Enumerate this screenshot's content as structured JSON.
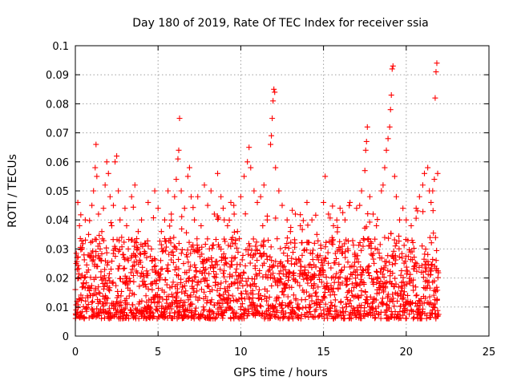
{
  "chart_data": {
    "type": "scatter",
    "title": "Day 180 of 2019, Rate Of TEC Index for receiver ssia",
    "xlabel": "GPS time / hours",
    "ylabel": "ROTI / TECUs",
    "xlim": [
      0,
      25
    ],
    "ylim": [
      0,
      0.1
    ],
    "xticks": [
      "0",
      "5",
      "10",
      "15",
      "20",
      "25"
    ],
    "yticks": [
      "0",
      "0.01",
      "0.02",
      "0.03",
      "0.04",
      "0.05",
      "0.06",
      "0.07",
      "0.08",
      "0.09",
      "0.1"
    ],
    "x_tick_values": [
      0,
      5,
      10,
      15,
      20,
      25
    ],
    "y_tick_values": [
      0,
      0.01,
      0.02,
      0.03,
      0.04,
      0.05,
      0.06,
      0.07,
      0.08,
      0.09,
      0.1
    ],
    "grid": true,
    "marker": "+",
    "color": "#ff0000",
    "series": [
      {
        "points": [
          [
            0.0,
            0.016
          ],
          [
            0.05,
            0.025
          ],
          [
            0.1,
            0.012
          ],
          [
            0.15,
            0.046
          ],
          [
            0.2,
            0.02
          ],
          [
            0.25,
            0.038
          ],
          [
            0.3,
            0.008
          ],
          [
            0.4,
            0.03
          ],
          [
            0.5,
            0.018
          ],
          [
            0.6,
            0.04
          ],
          [
            0.7,
            0.022
          ],
          [
            0.8,
            0.035
          ],
          [
            0.9,
            0.014
          ],
          [
            1.0,
            0.045
          ],
          [
            1.1,
            0.05
          ],
          [
            1.2,
            0.058
          ],
          [
            1.25,
            0.066
          ],
          [
            1.3,
            0.055
          ],
          [
            1.4,
            0.042
          ],
          [
            1.5,
            0.03
          ],
          [
            1.6,
            0.036
          ],
          [
            1.7,
            0.044
          ],
          [
            1.8,
            0.052
          ],
          [
            1.9,
            0.06
          ],
          [
            2.0,
            0.056
          ],
          [
            2.1,
            0.048
          ],
          [
            2.2,
            0.038
          ],
          [
            2.3,
            0.045
          ],
          [
            2.4,
            0.06
          ],
          [
            2.5,
            0.062
          ],
          [
            2.6,
            0.05
          ],
          [
            2.7,
            0.04
          ],
          [
            2.8,
            0.034
          ],
          [
            2.9,
            0.028
          ],
          [
            3.0,
            0.044
          ],
          [
            3.1,
            0.038
          ],
          [
            3.2,
            0.03
          ],
          [
            3.4,
            0.048
          ],
          [
            3.6,
            0.052
          ],
          [
            3.8,
            0.036
          ],
          [
            4.0,
            0.04
          ],
          [
            4.2,
            0.032
          ],
          [
            4.4,
            0.046
          ],
          [
            4.6,
            0.03
          ],
          [
            4.8,
            0.05
          ],
          [
            5.0,
            0.044
          ],
          [
            5.2,
            0.036
          ],
          [
            5.4,
            0.04
          ],
          [
            5.6,
            0.05
          ],
          [
            5.8,
            0.042
          ],
          [
            6.0,
            0.048
          ],
          [
            6.1,
            0.054
          ],
          [
            6.2,
            0.061
          ],
          [
            6.25,
            0.064
          ],
          [
            6.3,
            0.075
          ],
          [
            6.4,
            0.05
          ],
          [
            6.6,
            0.044
          ],
          [
            6.8,
            0.055
          ],
          [
            6.9,
            0.058
          ],
          [
            7.0,
            0.048
          ],
          [
            7.2,
            0.04
          ],
          [
            7.4,
            0.048
          ],
          [
            7.6,
            0.038
          ],
          [
            7.8,
            0.052
          ],
          [
            8.0,
            0.045
          ],
          [
            8.2,
            0.05
          ],
          [
            8.4,
            0.042
          ],
          [
            8.6,
            0.056
          ],
          [
            8.8,
            0.048
          ],
          [
            9.0,
            0.04
          ],
          [
            9.2,
            0.038
          ],
          [
            9.4,
            0.046
          ],
          [
            9.6,
            0.042
          ],
          [
            9.8,
            0.036
          ],
          [
            10.0,
            0.048
          ],
          [
            10.2,
            0.055
          ],
          [
            10.4,
            0.06
          ],
          [
            10.5,
            0.065
          ],
          [
            10.6,
            0.058
          ],
          [
            10.8,
            0.05
          ],
          [
            11.0,
            0.046
          ],
          [
            11.2,
            0.048
          ],
          [
            11.4,
            0.052
          ],
          [
            11.6,
            0.04
          ],
          [
            11.8,
            0.066
          ],
          [
            11.85,
            0.069
          ],
          [
            11.9,
            0.075
          ],
          [
            11.95,
            0.081
          ],
          [
            12.0,
            0.085
          ],
          [
            12.05,
            0.084
          ],
          [
            12.1,
            0.058
          ],
          [
            12.3,
            0.05
          ],
          [
            12.5,
            0.045
          ],
          [
            12.8,
            0.04
          ],
          [
            13.0,
            0.036
          ],
          [
            13.3,
            0.042
          ],
          [
            13.6,
            0.038
          ],
          [
            14.0,
            0.046
          ],
          [
            14.3,
            0.04
          ],
          [
            14.6,
            0.035
          ],
          [
            15.0,
            0.046
          ],
          [
            15.1,
            0.055
          ],
          [
            15.3,
            0.042
          ],
          [
            15.6,
            0.038
          ],
          [
            16.0,
            0.044
          ],
          [
            16.3,
            0.04
          ],
          [
            16.6,
            0.046
          ],
          [
            17.0,
            0.044
          ],
          [
            17.3,
            0.05
          ],
          [
            17.5,
            0.057
          ],
          [
            17.55,
            0.064
          ],
          [
            17.6,
            0.067
          ],
          [
            17.65,
            0.072
          ],
          [
            17.8,
            0.048
          ],
          [
            18.0,
            0.042
          ],
          [
            18.2,
            0.038
          ],
          [
            18.5,
            0.05
          ],
          [
            18.6,
            0.052
          ],
          [
            18.7,
            0.058
          ],
          [
            18.8,
            0.064
          ],
          [
            18.9,
            0.068
          ],
          [
            19.0,
            0.072
          ],
          [
            19.05,
            0.078
          ],
          [
            19.1,
            0.083
          ],
          [
            19.15,
            0.092
          ],
          [
            19.2,
            0.093
          ],
          [
            19.3,
            0.055
          ],
          [
            19.4,
            0.048
          ],
          [
            19.6,
            0.04
          ],
          [
            19.8,
            0.044
          ],
          [
            20.0,
            0.04
          ],
          [
            20.3,
            0.038
          ],
          [
            20.6,
            0.044
          ],
          [
            20.8,
            0.048
          ],
          [
            21.0,
            0.052
          ],
          [
            21.1,
            0.056
          ],
          [
            21.3,
            0.058
          ],
          [
            21.4,
            0.05
          ],
          [
            21.5,
            0.046
          ],
          [
            21.6,
            0.05
          ],
          [
            21.7,
            0.054
          ],
          [
            21.75,
            0.082
          ],
          [
            21.8,
            0.091
          ],
          [
            21.85,
            0.094
          ],
          [
            21.9,
            0.056
          ]
        ]
      }
    ]
  }
}
